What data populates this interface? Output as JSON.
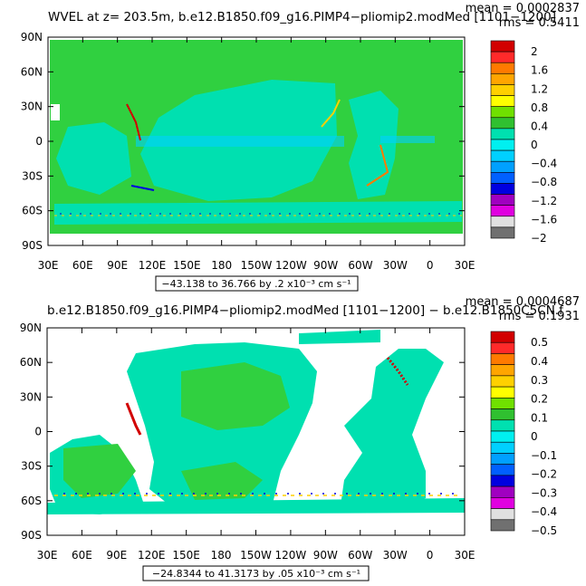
{
  "chart_data": [
    {
      "type": "heatmap",
      "title": "WVEL at z= 203.5m, b.e12.B1850.f09_g16.PIMP4−pliomip2.modMed [1101−1200]",
      "stats": {
        "mean": "mean = 0.0002837",
        "rms": "rms = 0.5411"
      },
      "range_label": "−43.138 to 36.766 by .2 x10⁻³ cm s⁻¹",
      "x_ticks": [
        "30E",
        "60E",
        "90E",
        "120E",
        "150E",
        "180",
        "150W",
        "120W",
        "90W",
        "60W",
        "30W",
        "0",
        "30E"
      ],
      "y_ticks": [
        "90N",
        "60N",
        "30N",
        "0",
        "30S",
        "60S",
        "90S"
      ],
      "xlim": [
        30,
        390
      ],
      "ylim": [
        -90,
        90
      ],
      "colorbar": {
        "labels": [
          "2",
          "1.6",
          "1.2",
          "0.8",
          "0.4",
          "0",
          "−0.4",
          "−0.8",
          "−1.2",
          "−1.6",
          "−2"
        ],
        "colors": [
          "#d20000",
          "#ff2a2a",
          "#ff7a00",
          "#ffa500",
          "#ffd000",
          "#ffff00",
          "#70e000",
          "#30c030",
          "#00e0b0",
          "#00f0f0",
          "#00d0ff",
          "#00a0ff",
          "#0060ff",
          "#0000e0",
          "#a000c0",
          "#e000e0",
          "#e0e0e0",
          "#707070"
        ]
      },
      "background_color": "#30d040",
      "land_mask": false
    },
    {
      "type": "heatmap",
      "title": "b.e12.B1850.f09_g16.PIMP4−pliomip2.modMed [1101−1200] − b.e12.B1850C5CN.f",
      "stats": {
        "mean": "mean = 0.0004687",
        "rms": "rms = 0.1931"
      },
      "range_label": "−24.8344 to 41.3173 by .05 x10⁻³ cm s⁻¹",
      "x_ticks": [
        "30E",
        "60E",
        "90E",
        "120E",
        "150E",
        "180",
        "150W",
        "120W",
        "90W",
        "60W",
        "30W",
        "0",
        "30E"
      ],
      "y_ticks": [
        "90N",
        "60N",
        "30N",
        "0",
        "30S",
        "60S",
        "90S"
      ],
      "xlim": [
        30,
        390
      ],
      "ylim": [
        -90,
        90
      ],
      "colorbar": {
        "labels": [
          "0.5",
          "0.4",
          "0.3",
          "0.2",
          "0.1",
          "0",
          "−0.1",
          "−0.2",
          "−0.3",
          "−0.4",
          "−0.5"
        ],
        "colors": [
          "#d20000",
          "#ff2a2a",
          "#ff7a00",
          "#ffa500",
          "#ffd000",
          "#ffff00",
          "#70e000",
          "#30c030",
          "#00e0b0",
          "#00f0f0",
          "#00d0ff",
          "#00a0ff",
          "#0060ff",
          "#0000e0",
          "#a000c0",
          "#e000e0",
          "#e0e0e0",
          "#707070"
        ]
      },
      "background_color": "#30d040",
      "land_mask": true
    }
  ]
}
